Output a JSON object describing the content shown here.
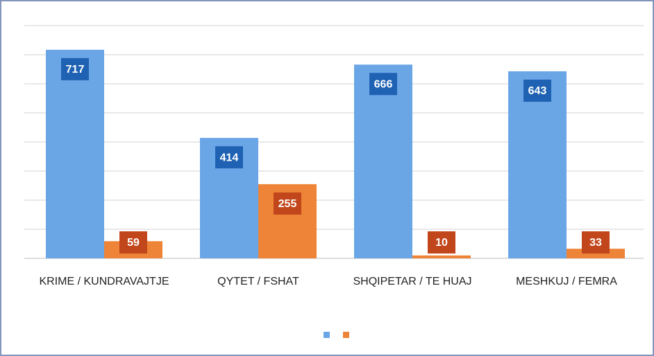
{
  "chart_data": {
    "type": "bar",
    "categories": [
      "KRIME / KUNDRAVAJTJE",
      "QYTET / FSHAT",
      "SHQIPETAR / TE HUAJ",
      "MESHKUJ / FEMRA"
    ],
    "series": [
      {
        "color": "#6aa6e6",
        "label_color": "#1f62b3",
        "values": [
          717,
          414,
          666,
          643
        ]
      },
      {
        "color": "#ee8437",
        "label_color": "#c2461b",
        "values": [
          59,
          255,
          10,
          33
        ]
      }
    ],
    "ylim": [
      0,
      800
    ],
    "yticks": [
      0,
      100,
      200,
      300,
      400,
      500,
      600,
      700,
      800
    ],
    "grid": true
  }
}
